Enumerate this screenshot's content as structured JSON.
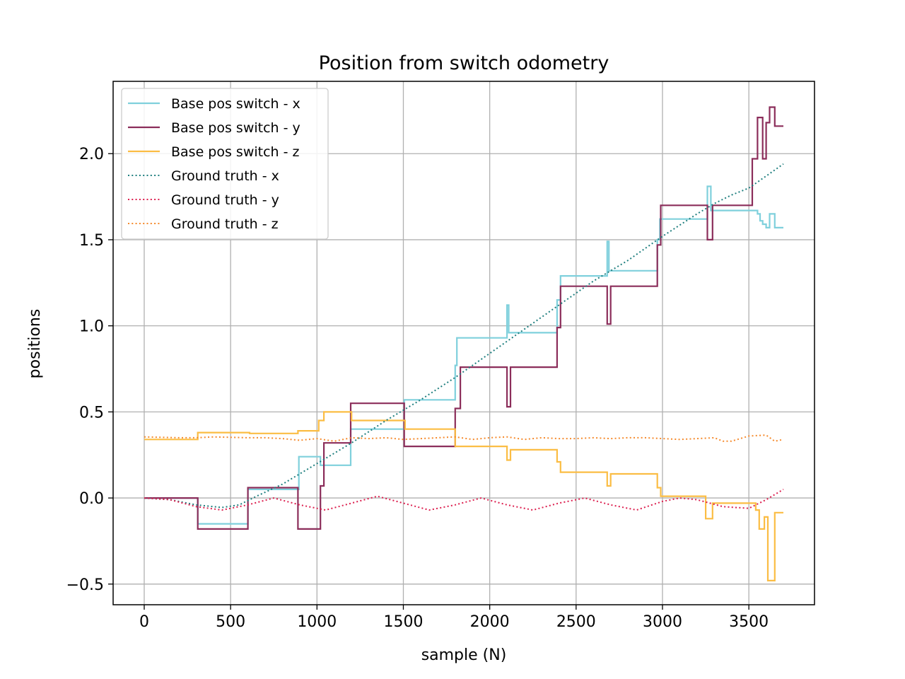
{
  "chart_data": {
    "type": "line",
    "title": "Position from switch odometry",
    "xlabel": "sample (N)",
    "ylabel": "positions",
    "xlim": [
      -180,
      3880
    ],
    "ylim": [
      -0.62,
      2.42
    ],
    "xticks": [
      0,
      500,
      1000,
      1500,
      2000,
      2500,
      3000,
      3500
    ],
    "xtick_labels": [
      "0",
      "500",
      "1000",
      "1500",
      "2000",
      "2500",
      "3000",
      "3500"
    ],
    "yticks": [
      -0.5,
      0.0,
      0.5,
      1.0,
      1.5,
      2.0
    ],
    "ytick_labels": [
      "−0.5",
      "0.0",
      "0.5",
      "1.0",
      "1.5",
      "2.0"
    ],
    "grid": true,
    "legend_position": "top-left",
    "series": [
      {
        "name": "Base pos switch - x",
        "color": "#7fd0dc",
        "style": "step",
        "points": [
          [
            0,
            0.0
          ],
          [
            300,
            0.0
          ],
          [
            310,
            -0.15
          ],
          [
            590,
            -0.15
          ],
          [
            600,
            0.05
          ],
          [
            880,
            0.05
          ],
          [
            895,
            0.24
          ],
          [
            1010,
            0.24
          ],
          [
            1020,
            0.19
          ],
          [
            1180,
            0.19
          ],
          [
            1195,
            0.4
          ],
          [
            1490,
            0.4
          ],
          [
            1505,
            0.57
          ],
          [
            1790,
            0.57
          ],
          [
            1800,
            0.77
          ],
          [
            1810,
            0.93
          ],
          [
            2090,
            0.93
          ],
          [
            2100,
            1.12
          ],
          [
            2110,
            0.96
          ],
          [
            2380,
            0.96
          ],
          [
            2390,
            1.15
          ],
          [
            2410,
            1.29
          ],
          [
            2670,
            1.29
          ],
          [
            2680,
            1.49
          ],
          [
            2690,
            1.32
          ],
          [
            2960,
            1.32
          ],
          [
            2970,
            1.5
          ],
          [
            2985,
            1.62
          ],
          [
            3250,
            1.62
          ],
          [
            3260,
            1.81
          ],
          [
            3280,
            1.67
          ],
          [
            3540,
            1.67
          ],
          [
            3550,
            1.65
          ],
          [
            3565,
            1.61
          ],
          [
            3580,
            1.59
          ],
          [
            3600,
            1.57
          ],
          [
            3620,
            1.65
          ],
          [
            3650,
            1.57
          ],
          [
            3700,
            1.57
          ]
        ]
      },
      {
        "name": "Base pos switch - y",
        "color": "#8b2d5a",
        "style": "step",
        "points": [
          [
            0,
            0.0
          ],
          [
            300,
            0.0
          ],
          [
            310,
            -0.18
          ],
          [
            590,
            -0.18
          ],
          [
            600,
            0.06
          ],
          [
            880,
            0.06
          ],
          [
            890,
            -0.18
          ],
          [
            1010,
            -0.18
          ],
          [
            1020,
            0.07
          ],
          [
            1040,
            0.32
          ],
          [
            1180,
            0.32
          ],
          [
            1195,
            0.55
          ],
          [
            1490,
            0.55
          ],
          [
            1505,
            0.3
          ],
          [
            1790,
            0.3
          ],
          [
            1800,
            0.52
          ],
          [
            1830,
            0.76
          ],
          [
            2090,
            0.76
          ],
          [
            2100,
            0.53
          ],
          [
            2120,
            0.76
          ],
          [
            2380,
            0.76
          ],
          [
            2390,
            0.99
          ],
          [
            2410,
            1.23
          ],
          [
            2670,
            1.23
          ],
          [
            2680,
            1.01
          ],
          [
            2700,
            1.23
          ],
          [
            2960,
            1.23
          ],
          [
            2970,
            1.47
          ],
          [
            2990,
            1.7
          ],
          [
            3250,
            1.7
          ],
          [
            3260,
            1.5
          ],
          [
            3290,
            1.7
          ],
          [
            3510,
            1.7
          ],
          [
            3520,
            1.97
          ],
          [
            3550,
            2.21
          ],
          [
            3580,
            1.97
          ],
          [
            3600,
            2.18
          ],
          [
            3620,
            2.27
          ],
          [
            3650,
            2.16
          ],
          [
            3700,
            2.16
          ]
        ]
      },
      {
        "name": "Base pos switch - z",
        "color": "#fbbd44",
        "style": "step",
        "points": [
          [
            0,
            0.34
          ],
          [
            300,
            0.34
          ],
          [
            310,
            0.38
          ],
          [
            600,
            0.38
          ],
          [
            610,
            0.375
          ],
          [
            880,
            0.375
          ],
          [
            890,
            0.39
          ],
          [
            990,
            0.39
          ],
          [
            1010,
            0.45
          ],
          [
            1040,
            0.5
          ],
          [
            1190,
            0.5
          ],
          [
            1200,
            0.45
          ],
          [
            1500,
            0.45
          ],
          [
            1510,
            0.4
          ],
          [
            1790,
            0.4
          ],
          [
            1800,
            0.3
          ],
          [
            2080,
            0.3
          ],
          [
            2100,
            0.22
          ],
          [
            2120,
            0.28
          ],
          [
            2380,
            0.28
          ],
          [
            2390,
            0.21
          ],
          [
            2410,
            0.15
          ],
          [
            2670,
            0.15
          ],
          [
            2680,
            0.07
          ],
          [
            2700,
            0.14
          ],
          [
            2960,
            0.14
          ],
          [
            2970,
            0.06
          ],
          [
            2990,
            0.01
          ],
          [
            3240,
            0.01
          ],
          [
            3250,
            -0.12
          ],
          [
            3290,
            -0.03
          ],
          [
            3520,
            -0.03
          ],
          [
            3540,
            -0.07
          ],
          [
            3560,
            -0.18
          ],
          [
            3590,
            -0.11
          ],
          [
            3610,
            -0.48
          ],
          [
            3640,
            -0.48
          ],
          [
            3650,
            -0.085
          ],
          [
            3700,
            -0.085
          ]
        ]
      },
      {
        "name": "Ground truth - x",
        "color": "#1f7f7f",
        "style": "dotted",
        "points": [
          [
            0,
            0.0
          ],
          [
            150,
            -0.01
          ],
          [
            300,
            -0.04
          ],
          [
            450,
            -0.055
          ],
          [
            550,
            -0.04
          ],
          [
            650,
            0.01
          ],
          [
            800,
            0.08
          ],
          [
            1000,
            0.2
          ],
          [
            1200,
            0.32
          ],
          [
            1400,
            0.45
          ],
          [
            1600,
            0.57
          ],
          [
            1800,
            0.7
          ],
          [
            2000,
            0.84
          ],
          [
            2200,
            0.98
          ],
          [
            2400,
            1.12
          ],
          [
            2600,
            1.26
          ],
          [
            2800,
            1.38
          ],
          [
            3000,
            1.52
          ],
          [
            3200,
            1.65
          ],
          [
            3300,
            1.71
          ],
          [
            3400,
            1.76
          ],
          [
            3500,
            1.8
          ],
          [
            3600,
            1.87
          ],
          [
            3700,
            1.94
          ]
        ]
      },
      {
        "name": "Ground truth - y",
        "color": "#dc1f4f",
        "style": "dotted",
        "points": [
          [
            0,
            0.0
          ],
          [
            150,
            -0.01
          ],
          [
            300,
            -0.05
          ],
          [
            450,
            -0.07
          ],
          [
            600,
            -0.04
          ],
          [
            750,
            0.0
          ],
          [
            900,
            -0.04
          ],
          [
            1050,
            -0.07
          ],
          [
            1200,
            -0.03
          ],
          [
            1350,
            0.01
          ],
          [
            1500,
            -0.03
          ],
          [
            1650,
            -0.07
          ],
          [
            1800,
            -0.04
          ],
          [
            1950,
            0.0
          ],
          [
            2100,
            -0.04
          ],
          [
            2250,
            -0.07
          ],
          [
            2400,
            -0.03
          ],
          [
            2550,
            0.0
          ],
          [
            2700,
            -0.04
          ],
          [
            2850,
            -0.07
          ],
          [
            3000,
            -0.02
          ],
          [
            3100,
            0.0
          ],
          [
            3200,
            -0.01
          ],
          [
            3350,
            -0.05
          ],
          [
            3500,
            -0.06
          ],
          [
            3600,
            -0.01
          ],
          [
            3700,
            0.05
          ]
        ]
      },
      {
        "name": "Ground truth - z",
        "color": "#f58a2c",
        "style": "dotted",
        "points": [
          [
            0,
            0.355
          ],
          [
            200,
            0.35
          ],
          [
            300,
            0.35
          ],
          [
            400,
            0.355
          ],
          [
            600,
            0.35
          ],
          [
            700,
            0.35
          ],
          [
            800,
            0.345
          ],
          [
            900,
            0.335
          ],
          [
            1000,
            0.345
          ],
          [
            1100,
            0.33
          ],
          [
            1200,
            0.35
          ],
          [
            1300,
            0.345
          ],
          [
            1400,
            0.35
          ],
          [
            1500,
            0.34
          ],
          [
            1600,
            0.345
          ],
          [
            1700,
            0.35
          ],
          [
            1800,
            0.355
          ],
          [
            1900,
            0.34
          ],
          [
            2000,
            0.35
          ],
          [
            2100,
            0.355
          ],
          [
            2200,
            0.34
          ],
          [
            2300,
            0.35
          ],
          [
            2400,
            0.345
          ],
          [
            2500,
            0.345
          ],
          [
            2600,
            0.35
          ],
          [
            2700,
            0.345
          ],
          [
            2800,
            0.35
          ],
          [
            2900,
            0.35
          ],
          [
            3000,
            0.345
          ],
          [
            3100,
            0.34
          ],
          [
            3200,
            0.345
          ],
          [
            3300,
            0.35
          ],
          [
            3350,
            0.33
          ],
          [
            3400,
            0.33
          ],
          [
            3500,
            0.36
          ],
          [
            3600,
            0.365
          ],
          [
            3650,
            0.33
          ],
          [
            3700,
            0.34
          ]
        ]
      }
    ]
  }
}
